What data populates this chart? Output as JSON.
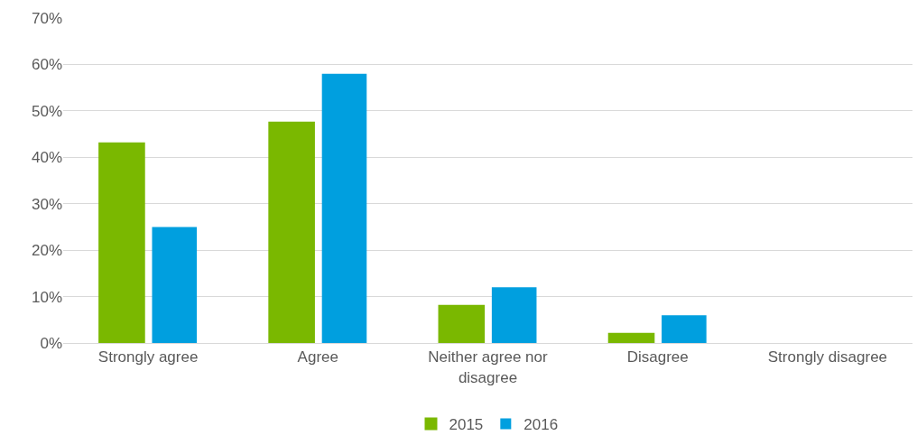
{
  "chart_data": {
    "type": "bar",
    "categories": [
      "Strongly agree",
      "Agree",
      "Neither agree nor disagree",
      "Disagree",
      "Strongly disagree"
    ],
    "series": [
      {
        "name": "2015",
        "color": "#7ab800",
        "values": [
          43,
          47.5,
          8,
          2,
          0
        ]
      },
      {
        "name": "2016",
        "color": "#009fdf",
        "values": [
          25,
          58,
          12,
          6,
          0
        ]
      }
    ],
    "ylim": [
      0,
      70
    ],
    "yticks": [
      {
        "value": 0,
        "label": "0%"
      },
      {
        "value": 10,
        "label": "10%"
      },
      {
        "value": 20,
        "label": "20%"
      },
      {
        "value": 30,
        "label": "30%"
      },
      {
        "value": 40,
        "label": "40%"
      },
      {
        "value": 50,
        "label": "50%"
      },
      {
        "value": 60,
        "label": "60%"
      },
      {
        "value": 70,
        "label": "70%"
      }
    ],
    "grid": "y",
    "legend": "bottom"
  }
}
